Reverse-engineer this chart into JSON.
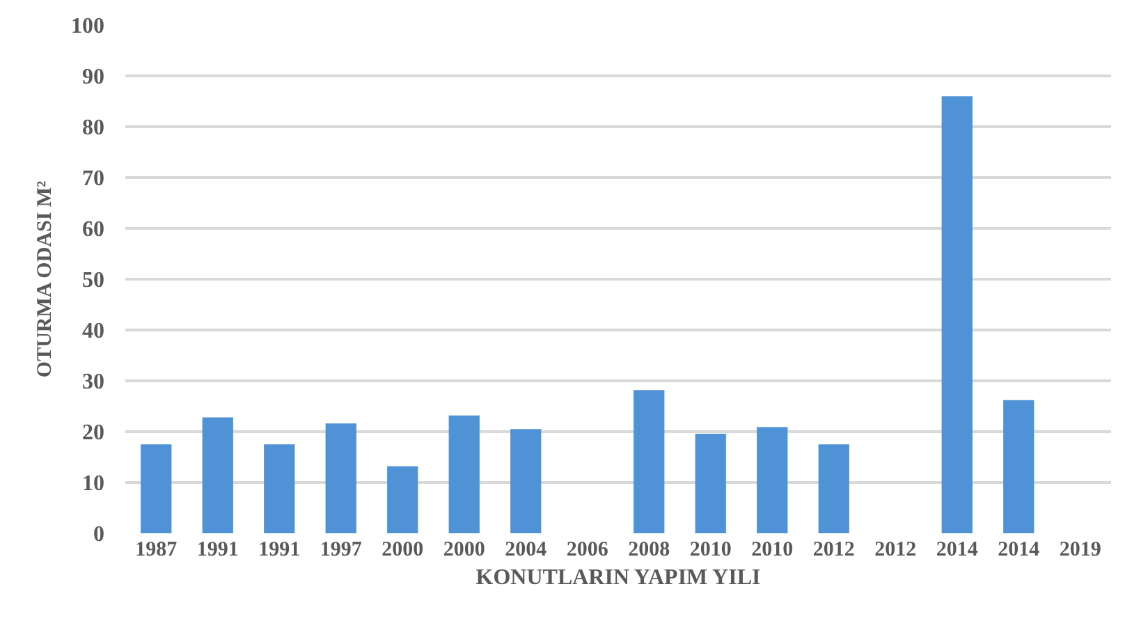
{
  "chart_data": {
    "type": "bar",
    "xlabel": "KONUTLARIN YAPIM YILI",
    "ylabel": "OTURMA ODASI M²",
    "categories": [
      "1987",
      "1991",
      "1991",
      "1997",
      "2000",
      "2000",
      "2004",
      "2006",
      "2008",
      "2010",
      "2010",
      "2012",
      "2012",
      "2014",
      "2014",
      "2019"
    ],
    "values": [
      17.5,
      22.8,
      17.5,
      21.6,
      13.2,
      23.2,
      20.5,
      null,
      28.2,
      19.6,
      20.9,
      17.5,
      null,
      86.0,
      26.2,
      null
    ],
    "color": "#4f93d6",
    "ylim": [
      0,
      100
    ],
    "yticks": [
      0,
      10,
      20,
      30,
      40,
      50,
      60,
      70,
      80,
      90,
      100
    ],
    "grid": "y"
  }
}
